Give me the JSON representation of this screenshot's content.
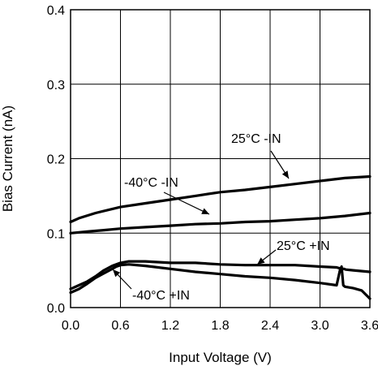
{
  "chart_data": {
    "type": "line",
    "xlabel": "Input Voltage (V)",
    "ylabel": "Bias Current (nA)",
    "xlim": [
      0,
      3.6
    ],
    "ylim": [
      0,
      0.4
    ],
    "x_ticks": [
      "0.0",
      "0.6",
      "1.2",
      "1.8",
      "2.4",
      "3.0",
      "3.6"
    ],
    "y_ticks": [
      "0.0",
      "0.1",
      "0.2",
      "0.3",
      "0.4"
    ],
    "grid": true,
    "colors": {
      "line": "#000000",
      "grid": "#000000",
      "background": "#ffffff"
    },
    "series": [
      {
        "name": "25°C -IN",
        "x": [
          0.0,
          0.1,
          0.3,
          0.6,
          0.9,
          1.2,
          1.5,
          1.8,
          2.1,
          2.4,
          2.7,
          3.0,
          3.3,
          3.6
        ],
        "y": [
          0.115,
          0.12,
          0.127,
          0.135,
          0.14,
          0.145,
          0.15,
          0.155,
          0.158,
          0.162,
          0.166,
          0.17,
          0.174,
          0.176
        ]
      },
      {
        "name": "-40°C -IN",
        "x": [
          0.0,
          0.2,
          0.4,
          0.6,
          0.9,
          1.2,
          1.5,
          1.8,
          2.1,
          2.4,
          2.7,
          3.0,
          3.3,
          3.6
        ],
        "y": [
          0.1,
          0.102,
          0.104,
          0.106,
          0.108,
          0.11,
          0.112,
          0.113,
          0.115,
          0.116,
          0.118,
          0.12,
          0.123,
          0.127
        ]
      },
      {
        "name": "25°C +IN",
        "x": [
          0.0,
          0.1,
          0.2,
          0.3,
          0.4,
          0.5,
          0.6,
          0.7,
          0.9,
          1.2,
          1.5,
          1.8,
          2.1,
          2.4,
          2.7,
          3.0,
          3.2,
          3.26,
          3.27,
          3.29,
          3.31,
          3.4,
          3.6
        ],
        "y": [
          0.025,
          0.03,
          0.035,
          0.042,
          0.05,
          0.056,
          0.06,
          0.062,
          0.062,
          0.06,
          0.06,
          0.058,
          0.057,
          0.057,
          0.057,
          0.055,
          0.054,
          0.052,
          0.052,
          0.052,
          0.051,
          0.05,
          0.048
        ]
      },
      {
        "name": "-40°C +IN",
        "x": [
          0.0,
          0.1,
          0.2,
          0.3,
          0.4,
          0.5,
          0.55,
          0.6,
          0.7,
          0.9,
          1.2,
          1.5,
          1.8,
          2.1,
          2.4,
          2.7,
          3.0,
          3.2,
          3.24,
          3.26,
          3.28,
          3.3,
          3.4,
          3.5,
          3.6
        ],
        "y": [
          0.02,
          0.025,
          0.032,
          0.04,
          0.046,
          0.052,
          0.055,
          0.057,
          0.058,
          0.056,
          0.052,
          0.048,
          0.045,
          0.042,
          0.04,
          0.037,
          0.033,
          0.03,
          0.05,
          0.055,
          0.03,
          0.028,
          0.026,
          0.023,
          0.012
        ]
      }
    ],
    "annotations": [
      {
        "text": "25°C -IN",
        "series": "25°C -IN"
      },
      {
        "text": "-40°C -IN",
        "series": "-40°C -IN"
      },
      {
        "text": "25°C +IN",
        "series": "25°C +IN"
      },
      {
        "text": "-40°C +IN",
        "series": "-40°C +IN"
      }
    ]
  }
}
